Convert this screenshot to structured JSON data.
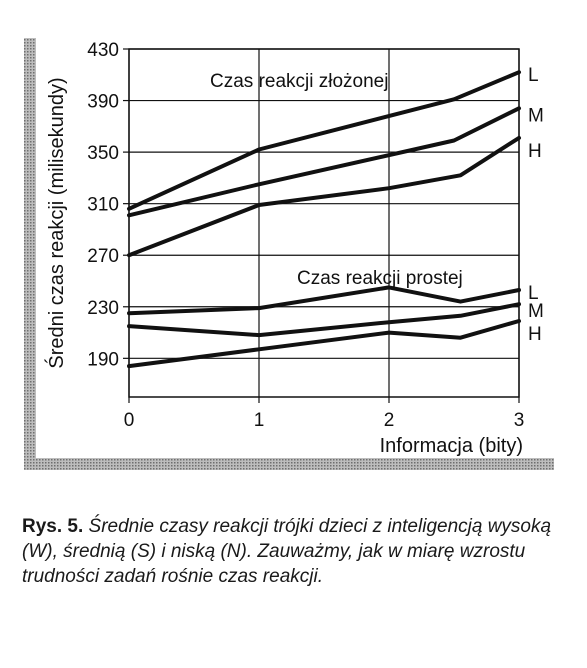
{
  "chart_data": {
    "type": "line",
    "xlabel": "Informacja (bity)",
    "ylabel": "Średni czas reakcji (milisekundy)",
    "xlim": [
      0,
      3
    ],
    "ylim": [
      160,
      430
    ],
    "xticks": [
      "0",
      "1",
      "2",
      "3"
    ],
    "yticks": [
      "430",
      "390",
      "350",
      "310",
      "270",
      "230",
      "190"
    ],
    "grid": true,
    "annotations": [
      {
        "text": "Czas reakcji złożonej"
      },
      {
        "text": "Czas reakcji prostej"
      }
    ],
    "series": [
      {
        "name": "L",
        "group": "complex",
        "x": [
          0,
          1,
          2.5,
          3
        ],
        "y": [
          306,
          352,
          391,
          412
        ]
      },
      {
        "name": "M",
        "group": "complex",
        "x": [
          0,
          1,
          2.5,
          3
        ],
        "y": [
          301,
          325,
          359,
          384
        ]
      },
      {
        "name": "H",
        "group": "complex",
        "x": [
          0,
          1,
          2,
          2.55,
          3
        ],
        "y": [
          270,
          309,
          322,
          332,
          361
        ]
      },
      {
        "name": "L",
        "group": "simple",
        "x": [
          0,
          1,
          2,
          2.55,
          3
        ],
        "y": [
          225,
          229,
          245,
          234,
          243
        ]
      },
      {
        "name": "M",
        "group": "simple",
        "x": [
          0,
          1,
          2,
          2.55,
          3
        ],
        "y": [
          215,
          208,
          218,
          223,
          232
        ]
      },
      {
        "name": "H",
        "group": "simple",
        "x": [
          0,
          1,
          2,
          2.55,
          3
        ],
        "y": [
          184,
          197,
          210,
          206,
          219
        ]
      }
    ]
  },
  "caption": {
    "lead": "Rys. 5.",
    "text": "Średnie czasy reakcji trójki dzieci z inteligencją wysoką (W), średnią (S) i niską (N). Zauważmy, jak w miarę wzrostu trudności zadań rośnie czas reakcji."
  }
}
